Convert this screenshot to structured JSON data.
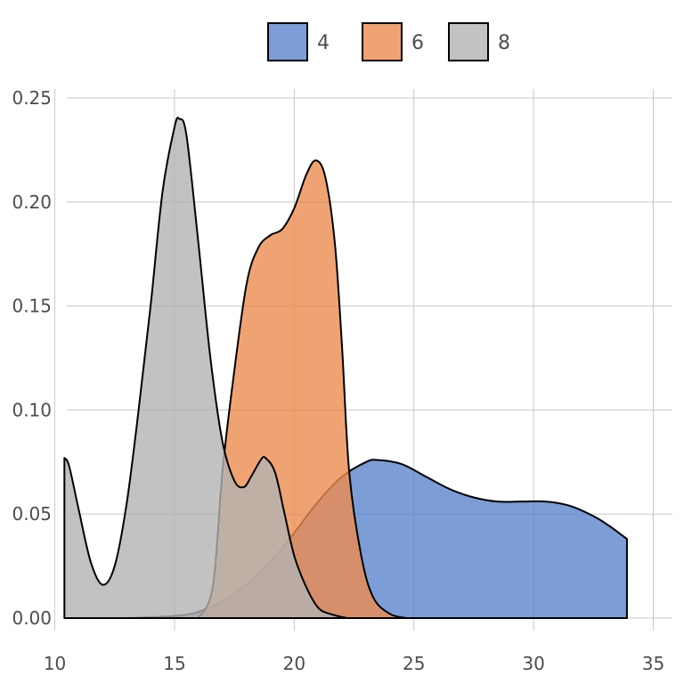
{
  "chart_data": {
    "type": "area",
    "title": "",
    "xlabel": "",
    "ylabel": "",
    "xlim": [
      10,
      35
    ],
    "ylim": [
      0,
      0.25
    ],
    "x_ticks": [
      10,
      15,
      20,
      25,
      30,
      35
    ],
    "y_ticks": [
      0.0,
      0.05,
      0.1,
      0.15,
      0.2,
      0.25
    ],
    "y_tick_labels": [
      "0.00",
      "0.05",
      "0.10",
      "0.15",
      "0.20",
      "0.25"
    ],
    "grid": true,
    "legend_position": "top",
    "series": [
      {
        "name": "4",
        "color": "#5b84cc",
        "opacity": 0.8,
        "points": [
          [
            13.0,
            0.0
          ],
          [
            15.0,
            0.001
          ],
          [
            16.0,
            0.003
          ],
          [
            17.0,
            0.008
          ],
          [
            18.0,
            0.016
          ],
          [
            19.0,
            0.027
          ],
          [
            20.0,
            0.041
          ],
          [
            21.0,
            0.056
          ],
          [
            22.0,
            0.068
          ],
          [
            23.0,
            0.075
          ],
          [
            23.5,
            0.076
          ],
          [
            24.5,
            0.074
          ],
          [
            25.5,
            0.068
          ],
          [
            26.5,
            0.062
          ],
          [
            27.5,
            0.058
          ],
          [
            28.5,
            0.056
          ],
          [
            29.5,
            0.056
          ],
          [
            30.5,
            0.056
          ],
          [
            31.5,
            0.054
          ],
          [
            32.5,
            0.049
          ],
          [
            33.2,
            0.044
          ],
          [
            33.9,
            0.038
          ]
        ]
      },
      {
        "name": "6",
        "color": "#ec8c4f",
        "opacity": 0.8,
        "points": [
          [
            16.0,
            0.0
          ],
          [
            16.6,
            0.015
          ],
          [
            17.0,
            0.07
          ],
          [
            17.4,
            0.11
          ],
          [
            18.0,
            0.16
          ],
          [
            18.5,
            0.178
          ],
          [
            19.0,
            0.184
          ],
          [
            19.5,
            0.187
          ],
          [
            20.0,
            0.197
          ],
          [
            20.5,
            0.213
          ],
          [
            20.9,
            0.22
          ],
          [
            21.3,
            0.212
          ],
          [
            21.7,
            0.18
          ],
          [
            22.0,
            0.13
          ],
          [
            22.3,
            0.07
          ],
          [
            22.8,
            0.03
          ],
          [
            23.3,
            0.01
          ],
          [
            24.0,
            0.002
          ],
          [
            24.7,
            0.0
          ]
        ]
      },
      {
        "name": "8",
        "color": "#b3b3b3",
        "opacity": 0.8,
        "points": [
          [
            10.4,
            0.077
          ],
          [
            10.6,
            0.073
          ],
          [
            11.0,
            0.052
          ],
          [
            11.5,
            0.027
          ],
          [
            12.0,
            0.016
          ],
          [
            12.5,
            0.025
          ],
          [
            13.0,
            0.055
          ],
          [
            13.5,
            0.1
          ],
          [
            14.0,
            0.15
          ],
          [
            14.5,
            0.205
          ],
          [
            15.0,
            0.236
          ],
          [
            15.2,
            0.24
          ],
          [
            15.5,
            0.232
          ],
          [
            16.0,
            0.18
          ],
          [
            16.5,
            0.125
          ],
          [
            17.0,
            0.085
          ],
          [
            17.5,
            0.066
          ],
          [
            17.9,
            0.063
          ],
          [
            18.2,
            0.068
          ],
          [
            18.6,
            0.076
          ],
          [
            18.8,
            0.077
          ],
          [
            19.2,
            0.07
          ],
          [
            19.6,
            0.05
          ],
          [
            20.0,
            0.03
          ],
          [
            20.5,
            0.015
          ],
          [
            21.0,
            0.005
          ],
          [
            21.5,
            0.002
          ],
          [
            22.2,
            0.0
          ]
        ]
      }
    ]
  }
}
